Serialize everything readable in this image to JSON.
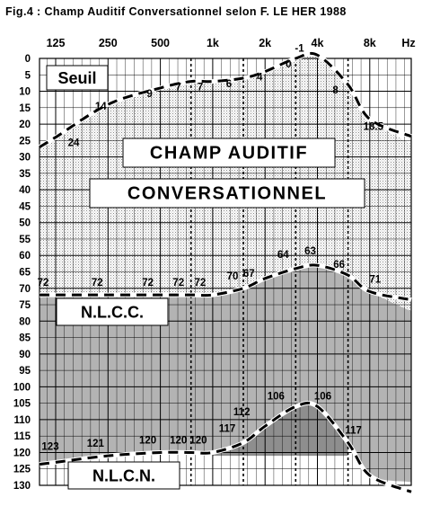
{
  "title": "Fig.4 : Champ Auditif Conversationnel selon F. LE HER 1988",
  "chart_data": {
    "type": "line",
    "x_scale": "log2",
    "x_tick_labels": [
      "125",
      "250",
      "500",
      "1k",
      "2k",
      "4k",
      "8k"
    ],
    "x_unit": "Hz",
    "y_tick_labels": [
      "0",
      "5",
      "10",
      "15",
      "20",
      "25",
      "30",
      "35",
      "40",
      "45",
      "50",
      "55",
      "60",
      "65",
      "70",
      "75",
      "80",
      "85",
      "90",
      "95",
      "100",
      "105",
      "110",
      "115",
      "120",
      "125",
      "130"
    ],
    "ylim": [
      0,
      130
    ],
    "y_inverted": true,
    "x_range_hz": [
      88,
      15000
    ],
    "grid": true,
    "series": [
      {
        "name": "Seuil",
        "x": [
          125,
          250,
          500,
          750,
          1000,
          1500,
          2000,
          3000,
          4000,
          6000,
          8000
        ],
        "y": [
          24,
          14,
          9,
          7,
          7,
          6,
          4,
          0,
          -1,
          8,
          18.5
        ],
        "labels": [
          "24",
          "14",
          "9",
          "7",
          "7",
          "6",
          "4",
          "0",
          "-1",
          "8",
          "18.5"
        ]
      },
      {
        "name": "N.L.C.C.",
        "x": [
          125,
          250,
          500,
          750,
          1000,
          1500,
          2000,
          3000,
          4000,
          6000,
          8000
        ],
        "y": [
          72,
          72,
          72,
          72,
          72,
          70,
          67,
          64,
          63,
          66,
          71
        ],
        "labels": [
          "72",
          "72",
          "72",
          "72",
          "72",
          "70",
          "67",
          "64",
          "63",
          "66",
          "71"
        ]
      },
      {
        "name": "N.L.C.N.",
        "x": [
          125,
          250,
          500,
          750,
          1000,
          1500,
          2000,
          3000,
          4000,
          6000,
          8000
        ],
        "y": [
          123,
          121,
          120,
          120,
          120,
          117,
          112,
          106,
          106,
          117,
          127
        ],
        "labels": [
          "123",
          "121",
          "120",
          "120",
          "120",
          "117",
          "112",
          "106",
          "106",
          "117",
          ""
        ]
      }
    ],
    "region_labels": [
      "CHAMP AUDITIF",
      "CONVERSATIONNEL"
    ]
  }
}
